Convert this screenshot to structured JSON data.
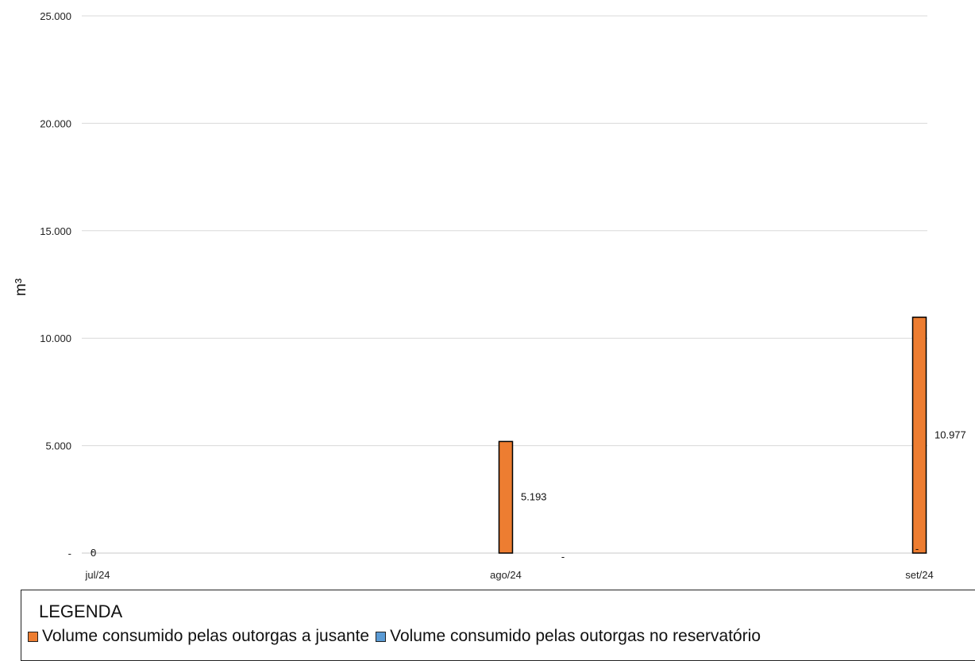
{
  "chart_data": {
    "type": "bar",
    "categories": [
      "jul/24",
      "ago/24",
      "set/24"
    ],
    "series": [
      {
        "name": "Volume consumido pelas outorgas a jusante",
        "values": [
          0,
          5193,
          10977
        ],
        "color": "#ED7D31",
        "labels": [
          "0",
          "5.193",
          "10.977"
        ]
      },
      {
        "name": "Volume consumido pelas outorgas no reservatório",
        "values": [
          0,
          0,
          0
        ],
        "color": "#5B9BD5",
        "labels": [
          "-",
          "-",
          "-"
        ]
      }
    ],
    "ylabel": "m³",
    "ylim": [
      0,
      25000
    ],
    "yticks": [
      0,
      5000,
      10000,
      15000,
      20000,
      25000
    ],
    "ytick_labels": [
      "-",
      "5.000",
      "10.000",
      "15.000",
      "20.000",
      "25.000"
    ],
    "grid": true,
    "legend_placement": "bottom"
  },
  "legend": {
    "title": "LEGENDA"
  }
}
